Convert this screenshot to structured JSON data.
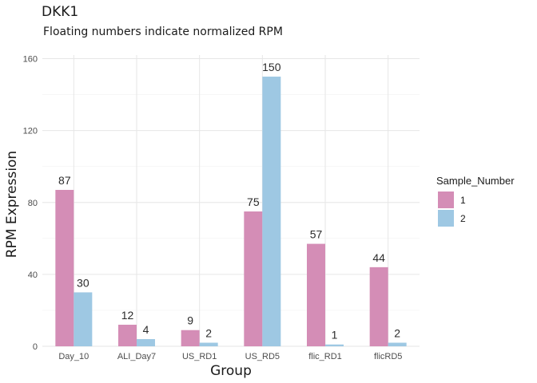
{
  "chart_data": {
    "type": "bar",
    "title": "DKK1",
    "subtitle": "Floating numbers indicate normalized RPM",
    "xlabel": "Group",
    "ylabel": "RPM Expression",
    "categories": [
      "Day_10",
      "ALI_Day7",
      "US_RD1",
      "US_RD5",
      "flic_RD1",
      "flicRD5"
    ],
    "series": [
      {
        "name": "1",
        "values": [
          87,
          12,
          9,
          75,
          57,
          44
        ],
        "color": "#d48db6"
      },
      {
        "name": "2",
        "values": [
          30,
          4,
          2,
          150,
          1,
          2
        ],
        "color": "#9ec8e3"
      }
    ],
    "data_labels": [
      [
        "87",
        "12",
        "9",
        "75",
        "57",
        "44"
      ],
      [
        "30",
        "4",
        "2",
        "150",
        "1",
        "2"
      ]
    ],
    "ylim": [
      0,
      162
    ],
    "yticks": [
      0,
      40,
      80,
      120,
      160
    ],
    "grid": true,
    "legend": {
      "title": "Sample_Number",
      "placement": "right"
    }
  }
}
